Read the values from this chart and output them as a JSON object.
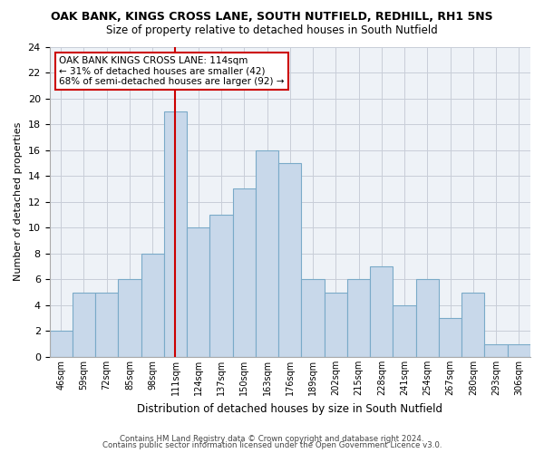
{
  "title": "OAK BANK, KINGS CROSS LANE, SOUTH NUTFIELD, REDHILL, RH1 5NS",
  "subtitle": "Size of property relative to detached houses in South Nutfield",
  "xlabel": "Distribution of detached houses by size in South Nutfield",
  "ylabel": "Number of detached properties",
  "categories": [
    "46sqm",
    "59sqm",
    "72sqm",
    "85sqm",
    "98sqm",
    "111sqm",
    "124sqm",
    "137sqm",
    "150sqm",
    "163sqm",
    "176sqm",
    "189sqm",
    "202sqm",
    "215sqm",
    "228sqm",
    "241sqm",
    "254sqm",
    "267sqm",
    "280sqm",
    "293sqm",
    "306sqm"
  ],
  "bar_heights": [
    2,
    5,
    5,
    6,
    8,
    19,
    10,
    11,
    13,
    16,
    15,
    6,
    5,
    6,
    7,
    4,
    6,
    3,
    5,
    1,
    1
  ],
  "bar_color": "#c8d8ea",
  "bar_edge_color": "#7aaac8",
  "vline_color": "#cc0000",
  "vline_x_index": 5.5,
  "annotation_text": "OAK BANK KINGS CROSS LANE: 114sqm\n← 31% of detached houses are smaller (42)\n68% of semi-detached houses are larger (92) →",
  "annotation_box_edge": "#cc0000",
  "ylim": [
    0,
    24
  ],
  "yticks": [
    0,
    2,
    4,
    6,
    8,
    10,
    12,
    14,
    16,
    18,
    20,
    22,
    24
  ],
  "footer1": "Contains HM Land Registry data © Crown copyright and database right 2024.",
  "footer2": "Contains public sector information licensed under the Open Government Licence v3.0.",
  "bg_color": "#eef2f7",
  "grid_color": "#c8cdd8",
  "title_fontsize": 9,
  "subtitle_fontsize": 8.5,
  "ylabel_fontsize": 8,
  "xlabel_fontsize": 8.5
}
